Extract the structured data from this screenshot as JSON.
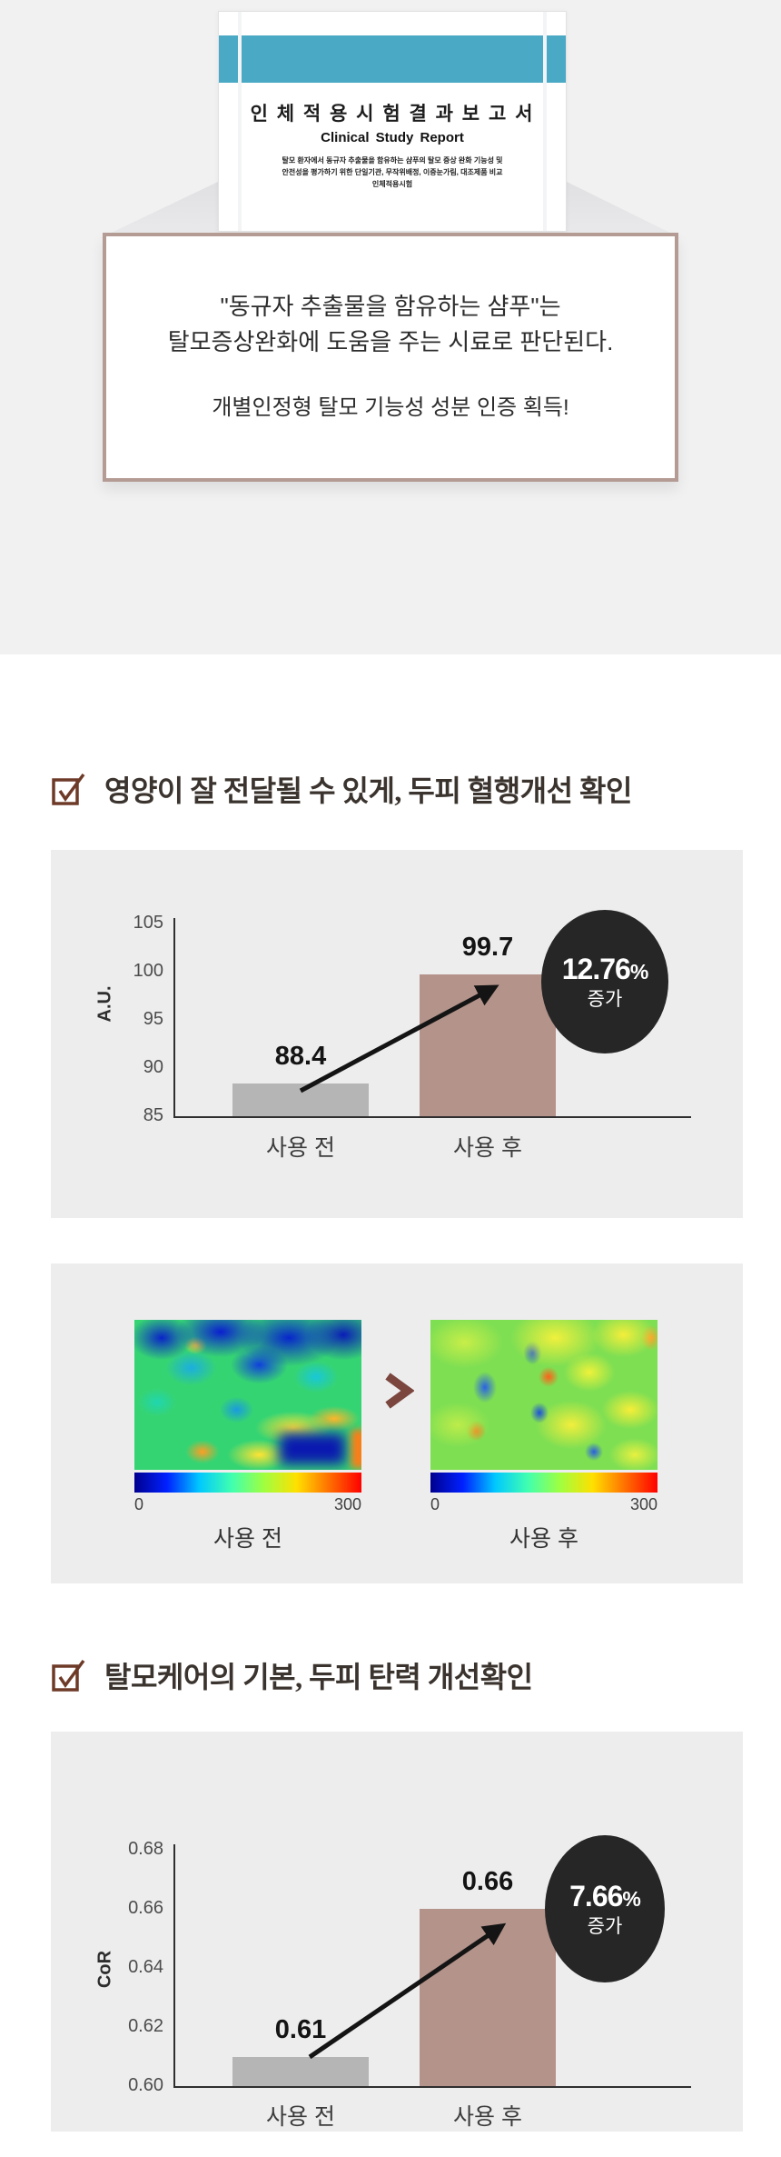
{
  "report_doc": {
    "title": "인 체 적 용 시 험 결 과 보 고 서",
    "subtitle": "Clinical Study Report",
    "desc_line1": "탈모 환자에서 동규자 추출물을 함유하는 샴푸의 탈모 증상 완화 기능성 및",
    "desc_line2": "안전성을 평가하기 위한 단일기관, 무작위배정, 이중눈가림, 대조제품 비교",
    "desc_line3": "인체적용시험"
  },
  "summary_box": {
    "line1": "\"동규자 추출물을 함유하는 샴푸\"는",
    "line2": "탈모증상완화에 도움을 주는 시료로 판단된다.",
    "line3": "개별인정형 탈모 기능성 성분 인증 획득!"
  },
  "sections": {
    "s1_heading": "영양이 잘 전달될 수 있게, 두피 혈행개선 확인",
    "s2_heading": "탈모케어의 기본, 두피 탄력 개선확인"
  },
  "heatmap": {
    "before_caption": "사용 전",
    "after_caption": "사용 후",
    "scale_min": "0",
    "scale_max": "300"
  },
  "colors": {
    "accent_teal": "#4aa9c4",
    "box_border": "#b49c94",
    "panel_bg": "#ededee",
    "bar_before": "#b5b5b5",
    "bar_after": "#b3938a",
    "badge_bg": "#262626",
    "heading_icon": "#6e3a28",
    "chevron": "#7a463e"
  },
  "chart_data": [
    {
      "type": "bar",
      "title": "두피 혈행개선 (사용 전/후)",
      "ylabel": "A.U.",
      "categories": [
        "사용 전",
        "사용 후"
      ],
      "values": [
        88.4,
        99.7
      ],
      "value_labels": [
        "88.4",
        "99.7"
      ],
      "ylim": [
        85,
        105
      ],
      "yticks": [
        "85",
        "90",
        "95",
        "100",
        "105"
      ],
      "badge_value": "12.76",
      "badge_unit": "%",
      "badge_caption": "증가",
      "grid": false,
      "legend": false
    },
    {
      "type": "heatmap",
      "title": "두피 열화상 비교",
      "panels": [
        "사용 전",
        "사용 후"
      ],
      "colorbar_range": [
        0,
        300
      ],
      "summary": "사용 전: 파란색(낮음) 영역 우세, 사용 후: 초록·노란색(높음) 영역 우세"
    },
    {
      "type": "bar",
      "title": "두피 탄력 (사용 전/후)",
      "ylabel": "CoR",
      "categories": [
        "사용 전",
        "사용 후"
      ],
      "values": [
        0.61,
        0.66
      ],
      "value_labels": [
        "0.61",
        "0.66"
      ],
      "ylim": [
        0.6,
        0.68
      ],
      "yticks": [
        "0.60",
        "0.62",
        "0.64",
        "0.66",
        "0.68"
      ],
      "badge_value": "7.66",
      "badge_unit": "%",
      "badge_caption": "증가",
      "grid": false,
      "legend": false
    }
  ]
}
